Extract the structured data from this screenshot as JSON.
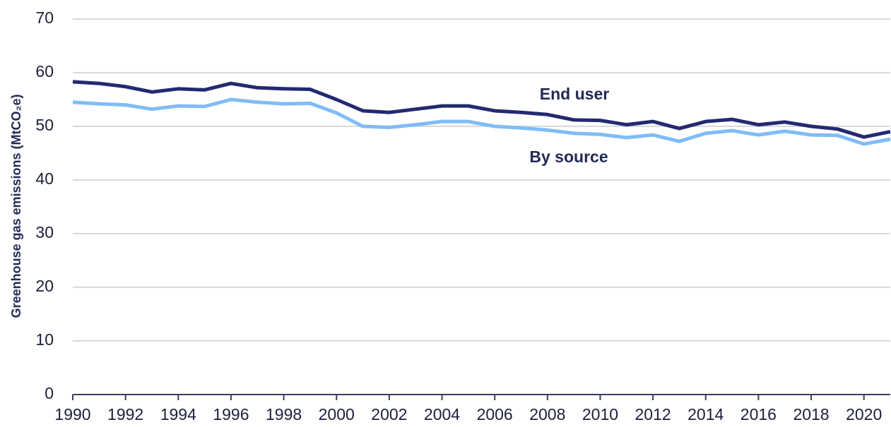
{
  "chart_data": {
    "type": "line",
    "y_label": "Greenhouse gas emissions (MtCO₂e)",
    "x": [
      1990,
      1991,
      1992,
      1993,
      1994,
      1995,
      1996,
      1997,
      1998,
      1999,
      2000,
      2001,
      2002,
      2003,
      2004,
      2005,
      2006,
      2007,
      2008,
      2009,
      2010,
      2011,
      2012,
      2013,
      2014,
      2015,
      2016,
      2017,
      2018,
      2019,
      2020,
      2021
    ],
    "series": [
      {
        "name": "End user",
        "color": "#232a70",
        "values": [
          58.3,
          58.0,
          57.4,
          56.4,
          57.0,
          56.8,
          58.0,
          57.2,
          57.0,
          56.9,
          55.0,
          52.9,
          52.6,
          53.2,
          53.8,
          53.8,
          52.9,
          52.6,
          52.2,
          51.2,
          51.1,
          50.3,
          50.9,
          49.6,
          50.9,
          51.3,
          50.3,
          50.8,
          50.0,
          49.5,
          48.0,
          49.0
        ]
      },
      {
        "name": "By source",
        "color": "#7fbcf7",
        "values": [
          54.5,
          54.2,
          54.0,
          53.2,
          53.8,
          53.7,
          55.0,
          54.5,
          54.2,
          54.3,
          52.5,
          50.0,
          49.8,
          50.3,
          50.9,
          50.9,
          50.0,
          49.7,
          49.3,
          48.7,
          48.5,
          47.9,
          48.4,
          47.2,
          48.7,
          49.2,
          48.4,
          49.1,
          48.4,
          48.3,
          46.7,
          47.6
        ]
      }
    ],
    "xlim": [
      1990,
      2021
    ],
    "xticks": [
      1990,
      1992,
      1994,
      1996,
      1998,
      2000,
      2002,
      2004,
      2006,
      2008,
      2010,
      2012,
      2014,
      2016,
      2018,
      2020
    ],
    "ylim": [
      0,
      70
    ],
    "yticks": [
      0,
      10,
      20,
      30,
      40,
      50,
      60,
      70
    ],
    "grid": true
  }
}
